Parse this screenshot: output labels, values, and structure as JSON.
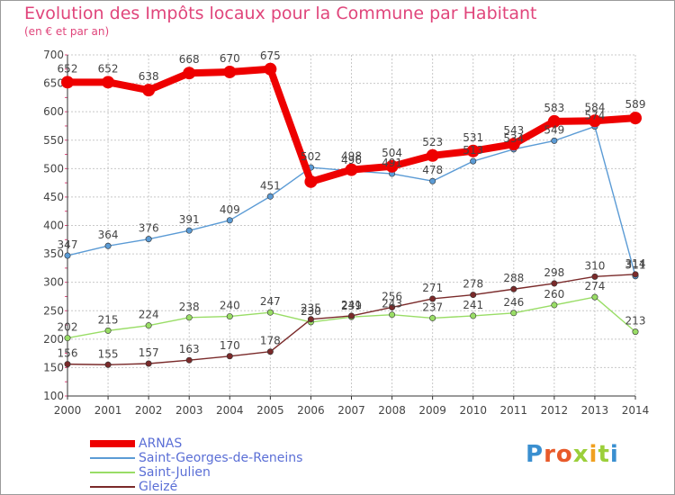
{
  "header": {
    "title": "Evolution des Impôts locaux pour la Commune par Habitant",
    "subtitle": "(en € et par an)"
  },
  "logo": {
    "text": "Proxiti"
  },
  "colors": {
    "accent": "#e0457b",
    "grid": "#c8c8c8",
    "axis": "#333333",
    "label": "#444444",
    "legend_text": "#5b6fd6"
  },
  "chart_data": {
    "type": "line",
    "title": "Evolution des Impôts locaux pour la Commune par Habitant",
    "subtitle": "(en € et par an)",
    "x": [
      "2000",
      "2001",
      "2002",
      "2003",
      "2004",
      "2005",
      "2006",
      "2007",
      "2008",
      "2009",
      "2010",
      "2011",
      "2012",
      "2013",
      "2014"
    ],
    "ylim": [
      100,
      700
    ],
    "yticks": [
      100,
      150,
      200,
      250,
      300,
      350,
      400,
      450,
      500,
      550,
      600,
      650,
      700
    ],
    "grid": true,
    "legend_position": "bottom-left",
    "series": [
      {
        "name": "ARNAS",
        "color": "#ee0000",
        "values": [
          652,
          652,
          638,
          668,
          670,
          675,
          477,
          498,
          504,
          523,
          531,
          543,
          583,
          584,
          589
        ],
        "labels": [
          "652",
          "652",
          "638",
          "668",
          "670",
          "675",
          "",
          "498",
          "504",
          "523",
          "531",
          "543",
          "583",
          "584",
          "589"
        ]
      },
      {
        "name": "Saint-Georges-de-Reneins",
        "color": "#5b9bd5",
        "values": [
          347,
          364,
          376,
          391,
          409,
          451,
          502,
          496,
          491,
          478,
          513,
          534,
          549,
          574,
          311
        ],
        "labels": [
          "347",
          "364",
          "376",
          "391",
          "409",
          "451",
          "502",
          "496",
          "491",
          "478",
          "513",
          "534",
          "549",
          "574",
          "311"
        ]
      },
      {
        "name": "Saint-Julien",
        "color": "#99dd66",
        "values": [
          202,
          215,
          224,
          238,
          240,
          247,
          230,
          239,
          243,
          237,
          241,
          246,
          260,
          274,
          213
        ],
        "labels": [
          "202",
          "215",
          "224",
          "238",
          "240",
          "247",
          "230",
          "239",
          "243",
          "237",
          "241",
          "246",
          "260",
          "274",
          "213"
        ]
      },
      {
        "name": "Gleizé",
        "color": "#7a2a2a",
        "values": [
          156,
          155,
          157,
          163,
          170,
          178,
          235,
          241,
          256,
          271,
          278,
          288,
          298,
          310,
          314
        ],
        "labels": [
          "156",
          "155",
          "157",
          "163",
          "170",
          "178",
          "235",
          "241",
          "256",
          "271",
          "278",
          "288",
          "298",
          "310",
          "314"
        ]
      }
    ]
  }
}
